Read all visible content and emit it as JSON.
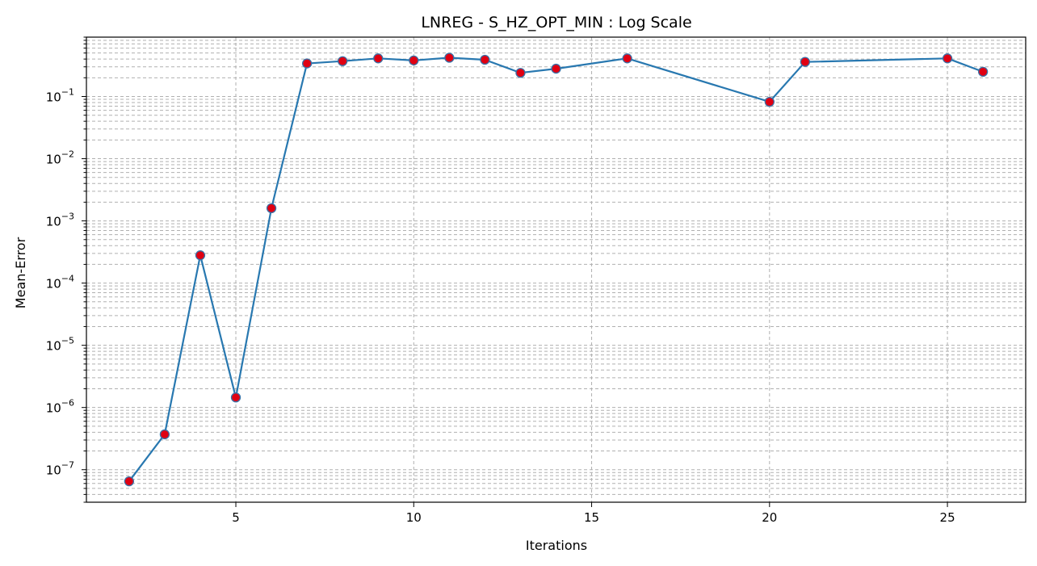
{
  "chart_data": {
    "type": "line",
    "title": "LNREG - S_HZ_OPT_MIN : Log Scale",
    "xlabel": "Iterations",
    "ylabel": "Mean-Error",
    "yscale": "log",
    "xlim": [
      0.8,
      27.2
    ],
    "ylim": [
      3e-08,
      0.9
    ],
    "x_ticks": [
      5,
      10,
      15,
      20,
      25
    ],
    "y_ticks": [
      {
        "value": 1e-07,
        "base": "10",
        "exp": "−7"
      },
      {
        "value": 1e-06,
        "base": "10",
        "exp": "−6"
      },
      {
        "value": 1e-05,
        "base": "10",
        "exp": "−5"
      },
      {
        "value": 0.0001,
        "base": "10",
        "exp": "−4"
      },
      {
        "value": 0.001,
        "base": "10",
        "exp": "−3"
      },
      {
        "value": 0.01,
        "base": "10",
        "exp": "−2"
      },
      {
        "value": 0.1,
        "base": "10",
        "exp": "−1"
      }
    ],
    "grid": true,
    "grid_style": "dashed",
    "line_color": "#2878b0",
    "marker_face": "#e00012",
    "marker_edge": "#3a72a8",
    "series": [
      {
        "x": [
          2,
          3,
          4,
          5,
          6,
          7,
          8,
          9,
          10,
          11,
          12,
          13,
          14,
          16,
          20,
          21,
          25,
          26
        ],
        "y": [
          6.5e-08,
          3.7e-07,
          0.00028,
          1.45e-06,
          0.0016,
          0.34,
          0.37,
          0.41,
          0.38,
          0.42,
          0.39,
          0.24,
          0.28,
          0.41,
          0.082,
          0.36,
          0.41,
          0.25
        ]
      }
    ]
  }
}
